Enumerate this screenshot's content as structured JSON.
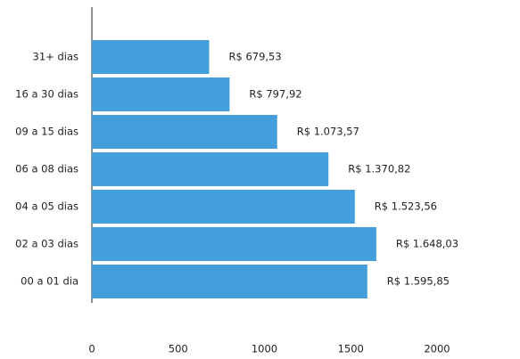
{
  "chart_data": {
    "type": "barh",
    "categories": [
      "31+ dias",
      "16 a 30 dias",
      "09 a 15 dias",
      "06 a 08 dias",
      "04 a 05 dias",
      "02 a 03 dias",
      "00 a 01 dia"
    ],
    "values": [
      679.53,
      797.92,
      1073.57,
      1370.82,
      1523.56,
      1648.03,
      1595.85
    ],
    "value_labels": [
      "R$ 679,53",
      "R$ 797,92",
      "R$ 1.073,57",
      "R$ 1.370,82",
      "R$ 1.523,56",
      "R$ 1.648,03",
      "R$ 1.595,85"
    ],
    "color": "#439fdb",
    "xlim": [
      0,
      2000
    ],
    "xticks": [
      0,
      500,
      1000,
      1500,
      2000
    ],
    "grid": false
  }
}
